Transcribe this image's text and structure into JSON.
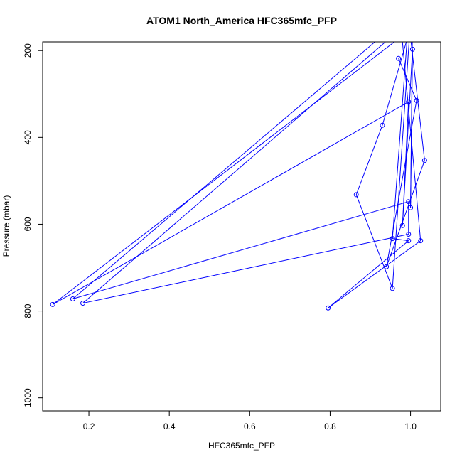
{
  "chart_data": {
    "type": "line",
    "title": "ATOM1 North_America HFC365mfc_PFP",
    "xlabel": "HFC365mfc_PFP",
    "ylabel": "Pressure (mbar)",
    "xlim": [
      0.085,
      1.075
    ],
    "ylim": [
      1030,
      180
    ],
    "y_reversed": true,
    "x_ticks": [
      0.2,
      0.4,
      0.6,
      0.8,
      1.0
    ],
    "x_tick_labels": [
      "0.2",
      "0.4",
      "0.6",
      "0.8",
      "1.0"
    ],
    "y_ticks": [
      200,
      400,
      600,
      800,
      1000
    ],
    "y_tick_labels": [
      "200",
      "400",
      "600",
      "800",
      "1000"
    ],
    "grid": false,
    "legend": "none",
    "color": "#0000ff",
    "series": [
      {
        "x": [
          1.03,
          0.11,
          0.995,
          0.98,
          1.005,
          1.0,
          1.005,
          0.93,
          0.865,
          0.955,
          1.0,
          0.185,
          0.995,
          0.995,
          0.16,
          0.975,
          1.025,
          0.795,
          0.995,
          0.955,
          0.995,
          1.035,
          0.94,
          1.015,
          0.97
        ],
        "y": [
          130,
          785,
          318,
          603,
          197,
          562,
          130,
          372,
          532,
          748,
          130,
          782,
          623,
          548,
          772,
          130,
          638,
          793,
          638,
          633,
          130,
          453,
          698,
          315,
          218
        ]
      }
    ]
  }
}
